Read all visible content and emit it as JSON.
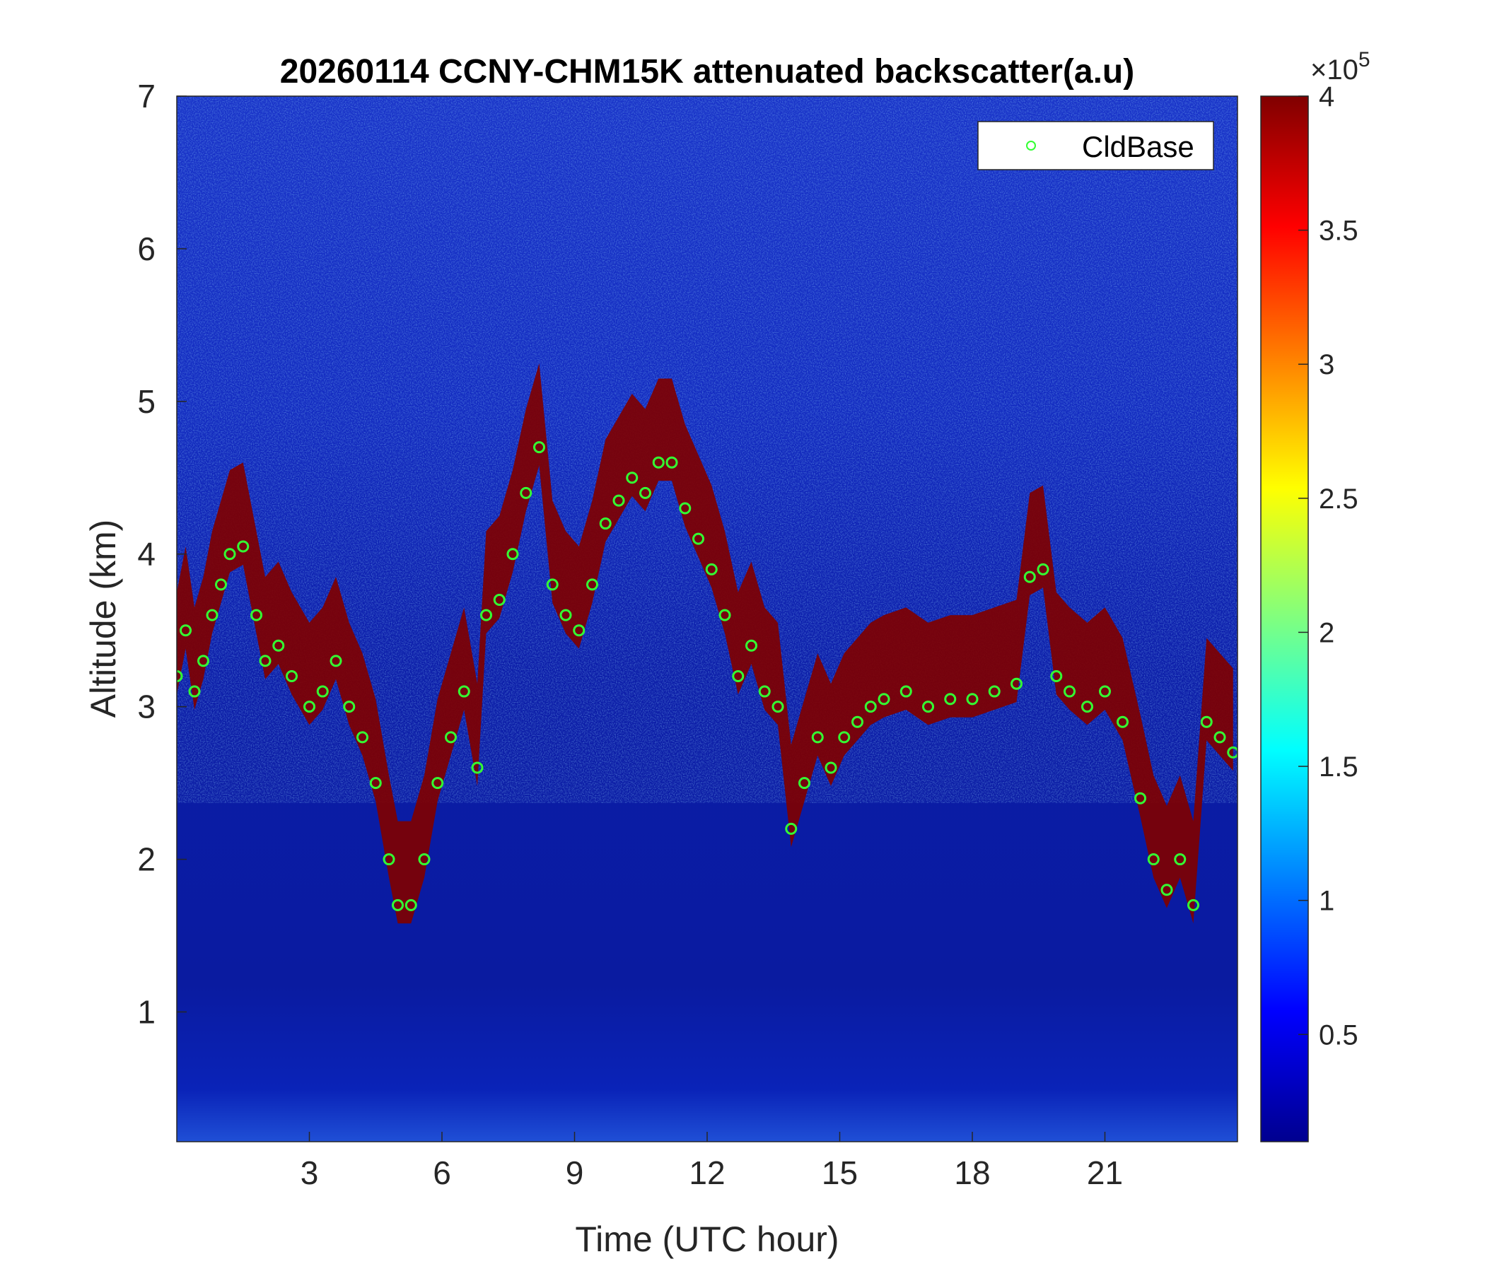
{
  "chart_data": {
    "type": "heatmap",
    "title": "20260114 CCNY-CHM15K attenuated backscatter(a.u)",
    "xlabel": "Time (UTC hour)",
    "ylabel": "Altitude (km)",
    "xlim": [
      0,
      24
    ],
    "ylim": [
      0.15,
      7
    ],
    "xticks": [
      3,
      6,
      9,
      12,
      15,
      18,
      21
    ],
    "xtick_labels": [
      "3",
      "6",
      "9",
      "12",
      "15",
      "18",
      "21"
    ],
    "yticks": [
      1,
      2,
      3,
      4,
      5,
      6,
      7
    ],
    "ytick_labels": [
      "1",
      "2",
      "3",
      "4",
      "5",
      "6",
      "7"
    ],
    "colorbar": {
      "colormap": "jet",
      "clim": [
        0.1,
        4
      ],
      "ticks": [
        0.5,
        1,
        1.5,
        2,
        2.5,
        3,
        3.5,
        4
      ],
      "tick_labels": [
        "0.5",
        "1",
        "1.5",
        "2",
        "2.5",
        "3",
        "3.5",
        "4"
      ],
      "exponent_label": "×10",
      "exponent": "5"
    },
    "legend": {
      "entries": [
        "CldBase"
      ],
      "location": "top-right"
    },
    "series": [
      {
        "name": "CldBase",
        "marker": "circle",
        "color": "#33ff33",
        "x": [
          0.0,
          0.2,
          0.4,
          0.6,
          0.8,
          1.0,
          1.2,
          1.5,
          1.8,
          2.0,
          2.3,
          2.6,
          3.0,
          3.3,
          3.6,
          3.9,
          4.2,
          4.5,
          4.8,
          5.0,
          5.3,
          5.6,
          5.9,
          6.2,
          6.5,
          6.8,
          7.0,
          7.3,
          7.6,
          7.9,
          8.2,
          8.5,
          8.8,
          9.1,
          9.4,
          9.7,
          10.0,
          10.3,
          10.6,
          10.9,
          11.2,
          11.5,
          11.8,
          12.1,
          12.4,
          12.7,
          13.0,
          13.3,
          13.6,
          13.9,
          14.2,
          14.5,
          14.8,
          15.1,
          15.4,
          15.7,
          16.0,
          16.5,
          17.0,
          17.5,
          18.0,
          18.5,
          19.0,
          19.3,
          19.6,
          19.9,
          20.2,
          20.6,
          21.0,
          21.4,
          21.8,
          22.1,
          22.4,
          22.7,
          23.0,
          23.3,
          23.6,
          23.9
        ],
        "y": [
          3.2,
          3.5,
          3.1,
          3.3,
          3.6,
          3.8,
          4.0,
          4.05,
          3.6,
          3.3,
          3.4,
          3.2,
          3.0,
          3.1,
          3.3,
          3.0,
          2.8,
          2.5,
          2.0,
          1.7,
          1.7,
          2.0,
          2.5,
          2.8,
          3.1,
          2.6,
          3.6,
          3.7,
          4.0,
          4.4,
          4.7,
          3.8,
          3.6,
          3.5,
          3.8,
          4.2,
          4.35,
          4.5,
          4.4,
          4.6,
          4.6,
          4.3,
          4.1,
          3.9,
          3.6,
          3.2,
          3.4,
          3.1,
          3.0,
          2.2,
          2.5,
          2.8,
          2.6,
          2.8,
          2.9,
          3.0,
          3.05,
          3.1,
          3.0,
          3.05,
          3.05,
          3.1,
          3.15,
          3.85,
          3.9,
          3.2,
          3.1,
          3.0,
          3.1,
          2.9,
          2.4,
          2.0,
          1.8,
          2.0,
          1.7,
          2.9,
          2.8,
          2.7
        ]
      }
    ]
  }
}
